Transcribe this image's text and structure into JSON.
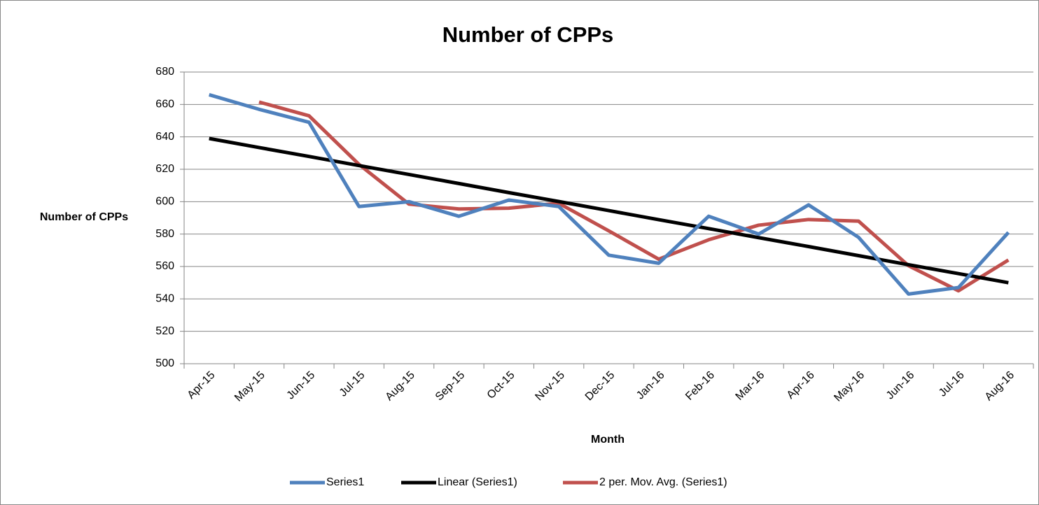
{
  "chart_data": {
    "type": "line",
    "title": "Number of CPPs",
    "x_label": "Month",
    "y_label": "Number of CPPs",
    "categories": [
      "Apr-15",
      "May-15",
      "Jun-15",
      "Jul-15",
      "Aug-15",
      "Sep-15",
      "Oct-15",
      "Nov-15",
      "Dec-15",
      "Jan-16",
      "Feb-16",
      "Mar-16",
      "Apr-16",
      "May-16",
      "Jun-16",
      "Jul-16",
      "Aug-16"
    ],
    "series": [
      {
        "name": "Series1",
        "color": "#4f81bd",
        "values": [
          666,
          657,
          649,
          597,
          600,
          591,
          601,
          597,
          567,
          562,
          591,
          580,
          598,
          578,
          543,
          547,
          581
        ]
      },
      {
        "name": "Linear (Series1)",
        "color": "#000000",
        "values": [
          639,
          633.4,
          627.9,
          622.3,
          616.8,
          611.2,
          605.6,
          600.1,
          594.5,
          588.9,
          583.4,
          577.8,
          572.3,
          566.7,
          561.1,
          555.6,
          550
        ]
      },
      {
        "name": "2 per. Mov. Avg. (Series1)",
        "color": "#c0504d",
        "values": [
          null,
          661.5,
          653,
          623,
          598.5,
          595.5,
          596,
          599,
          582,
          564.5,
          576.5,
          585.5,
          589,
          588,
          560.5,
          545,
          564
        ]
      }
    ],
    "ylim": [
      500,
      680
    ],
    "yticks": [
      500,
      520,
      540,
      560,
      580,
      600,
      620,
      640,
      660,
      680
    ],
    "grid": true,
    "legend": "bottom"
  }
}
